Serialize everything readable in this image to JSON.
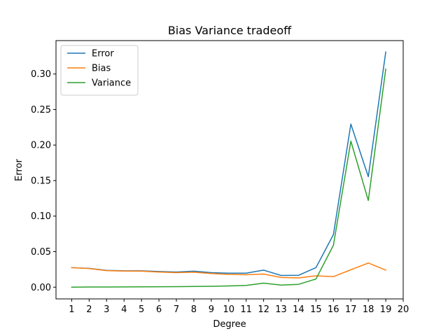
{
  "chart_data": {
    "type": "line",
    "title": "Bias Variance tradeoff",
    "xlabel": "Degree",
    "ylabel": "Error",
    "x": [
      1,
      2,
      3,
      4,
      5,
      6,
      7,
      8,
      9,
      10,
      11,
      12,
      13,
      14,
      15,
      16,
      17,
      18,
      19
    ],
    "xticks": [
      1,
      2,
      3,
      4,
      5,
      6,
      7,
      8,
      9,
      10,
      11,
      12,
      13,
      14,
      15,
      16,
      17,
      18,
      19,
      20
    ],
    "yticks": [
      0.0,
      0.05,
      0.1,
      0.15,
      0.2,
      0.25,
      0.3
    ],
    "ytick_labels": [
      "0.00",
      "0.05",
      "0.10",
      "0.15",
      "0.20",
      "0.25",
      "0.30"
    ],
    "xlim": [
      0.1,
      20.0
    ],
    "ylim": [
      -0.0165,
      0.347
    ],
    "legend": "top-left",
    "grid": false,
    "series": [
      {
        "name": "Error",
        "color": "#1f77b4",
        "values": [
          0.0275,
          0.0265,
          0.0237,
          0.023,
          0.023,
          0.022,
          0.0213,
          0.0225,
          0.0205,
          0.0197,
          0.0197,
          0.024,
          0.0165,
          0.0167,
          0.0275,
          0.074,
          0.2295,
          0.1555,
          0.331
        ]
      },
      {
        "name": "Bias",
        "color": "#ff7f0e",
        "values": [
          0.0275,
          0.0262,
          0.0233,
          0.0227,
          0.0225,
          0.0213,
          0.0205,
          0.021,
          0.0192,
          0.018,
          0.0175,
          0.0185,
          0.0137,
          0.013,
          0.016,
          0.0148,
          0.0245,
          0.034,
          0.024
        ]
      },
      {
        "name": "Variance",
        "color": "#2ca02c",
        "values": [
          0.0,
          0.0002,
          0.0003,
          0.0004,
          0.0005,
          0.0006,
          0.0007,
          0.001,
          0.0012,
          0.0017,
          0.0025,
          0.0057,
          0.003,
          0.004,
          0.0115,
          0.059,
          0.2055,
          0.122,
          0.307
        ]
      }
    ]
  }
}
